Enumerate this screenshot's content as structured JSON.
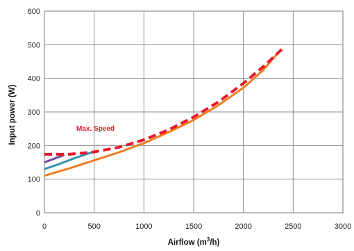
{
  "chart_data": {
    "type": "line",
    "title": "",
    "xlabel_main": "Airflow (m",
    "xlabel_sup": "3",
    "xlabel_tail": "/h)",
    "ylabel": "Input power (W)",
    "xlim": [
      0,
      3000
    ],
    "ylim": [
      0,
      600
    ],
    "xticks": [
      "0",
      "500",
      "1000",
      "1500",
      "2000",
      "2500",
      "3000"
    ],
    "yticks": [
      "0",
      "100",
      "200",
      "300",
      "400",
      "500",
      "600"
    ],
    "grid": true,
    "annotation": {
      "text": "Max. Speed",
      "color": "#e8182a"
    },
    "series": [
      {
        "color": "#f07c1e",
        "style": "solid",
        "points": [
          [
            0,
            110
          ],
          [
            250,
            132
          ],
          [
            500,
            156
          ],
          [
            750,
            180
          ],
          [
            1000,
            207
          ],
          [
            1250,
            240
          ],
          [
            1500,
            276
          ],
          [
            1750,
            320
          ],
          [
            2000,
            372
          ],
          [
            2200,
            425
          ],
          [
            2380,
            487
          ]
        ]
      },
      {
        "color": "#3a8fb0",
        "style": "solid",
        "points": [
          [
            0,
            130
          ],
          [
            150,
            145
          ],
          [
            300,
            162
          ],
          [
            500,
            182
          ]
        ]
      },
      {
        "color": "#6e4ea0",
        "style": "solid",
        "points": [
          [
            0,
            150
          ],
          [
            90,
            160
          ],
          [
            200,
            172
          ]
        ]
      },
      {
        "name": "Max. Speed",
        "color": "#e8182a",
        "style": "dashed",
        "points": [
          [
            0,
            174
          ],
          [
            250,
            174
          ],
          [
            500,
            181
          ],
          [
            750,
            195
          ],
          [
            1000,
            217
          ],
          [
            1250,
            247
          ],
          [
            1500,
            285
          ],
          [
            1750,
            330
          ],
          [
            2000,
            385
          ],
          [
            2200,
            435
          ],
          [
            2400,
            490
          ]
        ]
      }
    ]
  }
}
